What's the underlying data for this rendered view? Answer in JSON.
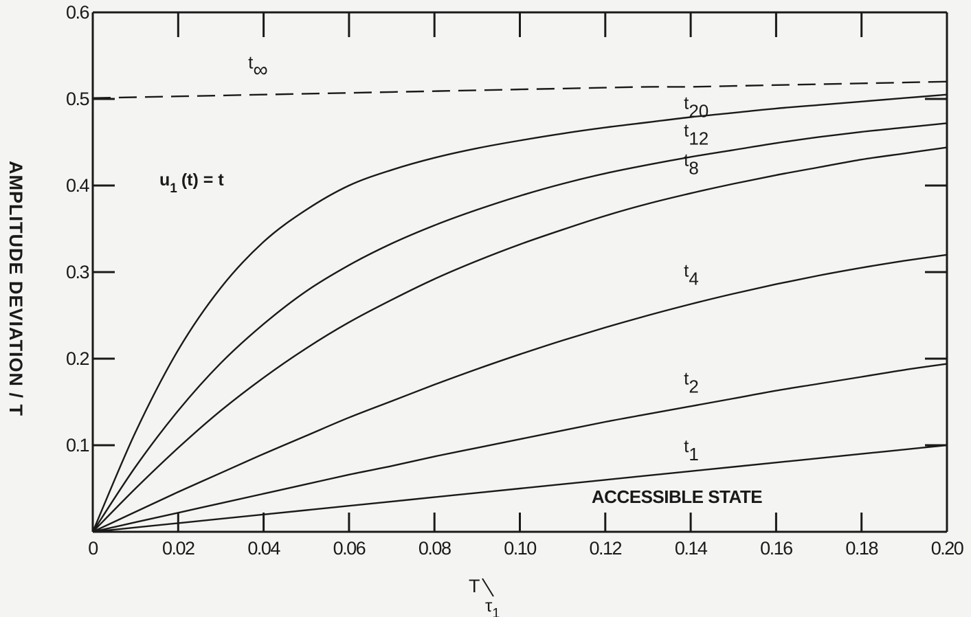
{
  "chart_data": {
    "type": "line",
    "xlabel": "T/τ1",
    "ylabel": "AMPLITUDE  DEVIATION / T",
    "xlim": [
      0,
      0.2
    ],
    "ylim": [
      0,
      0.6
    ],
    "xticks": [
      "0",
      "0.02",
      "0.04",
      "0.06",
      "0.08",
      "0.10",
      "0.12",
      "0.14",
      "0.16",
      "0.18",
      "0.20"
    ],
    "xtick_values": [
      0,
      0.02,
      0.04,
      0.06,
      0.08,
      0.1,
      0.12,
      0.14,
      0.16,
      0.18,
      0.2
    ],
    "yticks": [
      "0.1",
      "0.2",
      "0.3",
      "0.4",
      "0.5",
      "0.6"
    ],
    "ytick_values": [
      0.1,
      0.2,
      0.3,
      0.4,
      0.5,
      0.6
    ],
    "grid": false,
    "x": [
      0,
      0.01,
      0.02,
      0.03,
      0.04,
      0.05,
      0.06,
      0.07,
      0.08,
      0.09,
      0.1,
      0.11,
      0.12,
      0.13,
      0.14,
      0.15,
      0.16,
      0.17,
      0.18,
      0.19,
      0.2
    ],
    "series": [
      {
        "name": "t∞",
        "label_main": "t",
        "label_sub": "∞",
        "style": "dashed",
        "values": [
          0.501,
          0.502,
          0.503,
          0.504,
          0.505,
          0.506,
          0.507,
          0.508,
          0.509,
          0.51,
          0.511,
          0.512,
          0.513,
          0.514,
          0.514,
          0.515,
          0.516,
          0.517,
          0.518,
          0.519,
          0.52
        ]
      },
      {
        "name": "t20",
        "label_main": "t",
        "label_sub": "20",
        "style": "solid",
        "values": [
          0,
          0.115,
          0.21,
          0.282,
          0.335,
          0.372,
          0.4,
          0.418,
          0.432,
          0.443,
          0.452,
          0.46,
          0.467,
          0.473,
          0.479,
          0.484,
          0.489,
          0.493,
          0.497,
          0.501,
          0.505
        ]
      },
      {
        "name": "t12",
        "label_main": "t",
        "label_sub": "12",
        "style": "solid",
        "values": [
          0,
          0.075,
          0.14,
          0.195,
          0.24,
          0.278,
          0.308,
          0.333,
          0.354,
          0.372,
          0.388,
          0.402,
          0.414,
          0.424,
          0.433,
          0.441,
          0.449,
          0.456,
          0.462,
          0.467,
          0.472
        ]
      },
      {
        "name": "t8",
        "label_main": "t",
        "label_sub": "8",
        "style": "solid",
        "values": [
          0,
          0.05,
          0.097,
          0.14,
          0.178,
          0.212,
          0.242,
          0.268,
          0.292,
          0.313,
          0.332,
          0.349,
          0.365,
          0.379,
          0.391,
          0.402,
          0.412,
          0.421,
          0.43,
          0.437,
          0.444
        ]
      },
      {
        "name": "t4",
        "label_main": "t",
        "label_sub": "4",
        "style": "solid",
        "values": [
          0,
          0.023,
          0.046,
          0.068,
          0.09,
          0.111,
          0.132,
          0.151,
          0.17,
          0.188,
          0.205,
          0.221,
          0.236,
          0.25,
          0.263,
          0.275,
          0.286,
          0.296,
          0.305,
          0.313,
          0.32
        ]
      },
      {
        "name": "t2",
        "label_main": "t",
        "label_sub": "2",
        "style": "solid",
        "values": [
          0,
          0.011,
          0.022,
          0.033,
          0.044,
          0.055,
          0.066,
          0.076,
          0.087,
          0.097,
          0.107,
          0.117,
          0.127,
          0.136,
          0.145,
          0.154,
          0.163,
          0.171,
          0.179,
          0.187,
          0.194
        ]
      },
      {
        "name": "t1",
        "label_main": "t",
        "label_sub": "1",
        "style": "solid",
        "values": [
          0,
          0.005,
          0.01,
          0.015,
          0.02,
          0.025,
          0.03,
          0.035,
          0.04,
          0.045,
          0.05,
          0.055,
          0.06,
          0.065,
          0.07,
          0.075,
          0.08,
          0.085,
          0.09,
          0.095,
          0.1
        ]
      }
    ],
    "annotations": {
      "formula_main": "u",
      "formula_sub": "1",
      "formula_rest": "(t) = t",
      "state": "ACCESSIBLE  STATE"
    }
  }
}
